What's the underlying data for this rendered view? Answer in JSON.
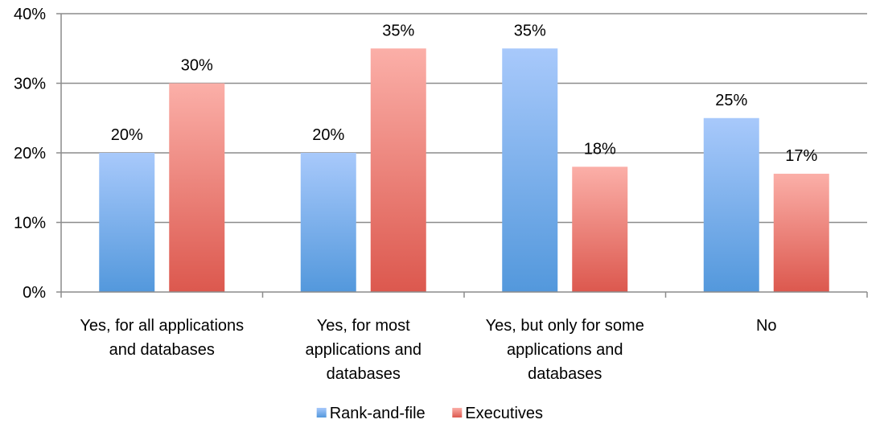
{
  "chart_data": {
    "type": "bar",
    "title": "",
    "xlabel": "",
    "ylabel": "",
    "categories": [
      [
        "Yes, for all applications",
        "and databases"
      ],
      [
        "Yes, for most",
        "applications and",
        "databases"
      ],
      [
        "Yes, but only for some",
        "applications and",
        "databases"
      ],
      [
        "No"
      ]
    ],
    "series": [
      {
        "name": "Rank-and-file",
        "values": [
          20,
          20,
          35,
          25
        ],
        "labels": [
          "20%",
          "20%",
          "35%",
          "25%"
        ],
        "color_top": "#a8c9fb",
        "color_bottom": "#5398dc"
      },
      {
        "name": "Executives",
        "values": [
          30,
          35,
          18,
          17
        ],
        "labels": [
          "30%",
          "35%",
          "18%",
          "17%"
        ],
        "color_top": "#fbafa8",
        "color_bottom": "#dc584e"
      }
    ],
    "ylim": [
      0,
      40
    ],
    "yticks": [
      0,
      10,
      20,
      30,
      40
    ],
    "ytick_labels": [
      "0%",
      "10%",
      "20%",
      "30%",
      "40%"
    ],
    "grid": true,
    "gridline_color": "#8c8c8c",
    "legend_position": "bottom-center"
  }
}
